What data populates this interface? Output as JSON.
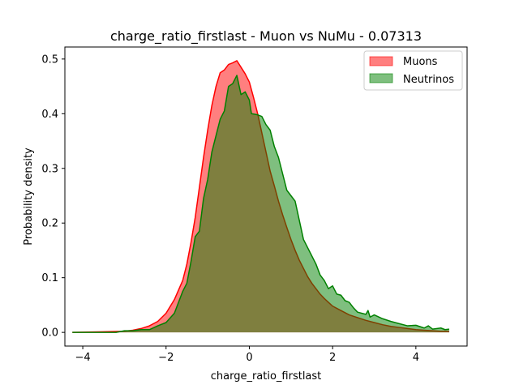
{
  "chart_data": {
    "type": "area",
    "title": "charge_ratio_firstlast - Muon vs NuMu - 0.07313",
    "xlabel": "charge_ratio_firstlast",
    "ylabel": "Probability density",
    "xlim": [
      -4.43,
      5.23
    ],
    "ylim": [
      -0.025,
      0.522
    ],
    "xticks": [
      -4,
      -2,
      0,
      2,
      4
    ],
    "xtick_labels": [
      "−4",
      "−2",
      "0",
      "2",
      "4"
    ],
    "yticks": [
      0.0,
      0.1,
      0.2,
      0.3,
      0.4,
      0.5
    ],
    "ytick_labels": [
      "0.0",
      "0.1",
      "0.2",
      "0.3",
      "0.4",
      "0.5"
    ],
    "legend_position": "top-right",
    "grid": false,
    "series": [
      {
        "name": "Muons",
        "line_color": "#ff0000",
        "fill_color": "#ff0000",
        "fill_alpha": 0.5,
        "points": [
          [
            -4.25,
            0.0
          ],
          [
            -3.0,
            0.002
          ],
          [
            -2.8,
            0.004
          ],
          [
            -2.6,
            0.007
          ],
          [
            -2.4,
            0.012
          ],
          [
            -2.2,
            0.02
          ],
          [
            -2.0,
            0.035
          ],
          [
            -1.8,
            0.06
          ],
          [
            -1.6,
            0.095
          ],
          [
            -1.5,
            0.125
          ],
          [
            -1.4,
            0.165
          ],
          [
            -1.3,
            0.21
          ],
          [
            -1.2,
            0.265
          ],
          [
            -1.1,
            0.32
          ],
          [
            -1.0,
            0.37
          ],
          [
            -0.9,
            0.415
          ],
          [
            -0.8,
            0.45
          ],
          [
            -0.7,
            0.475
          ],
          [
            -0.6,
            0.48
          ],
          [
            -0.5,
            0.49
          ],
          [
            -0.4,
            0.493
          ],
          [
            -0.3,
            0.497
          ],
          [
            -0.2,
            0.485
          ],
          [
            -0.1,
            0.473
          ],
          [
            0.0,
            0.458
          ],
          [
            0.1,
            0.43
          ],
          [
            0.2,
            0.4
          ],
          [
            0.3,
            0.365
          ],
          [
            0.4,
            0.33
          ],
          [
            0.5,
            0.295
          ],
          [
            0.6,
            0.268
          ],
          [
            0.7,
            0.24
          ],
          [
            0.8,
            0.215
          ],
          [
            0.9,
            0.192
          ],
          [
            1.0,
            0.17
          ],
          [
            1.1,
            0.15
          ],
          [
            1.2,
            0.132
          ],
          [
            1.3,
            0.117
          ],
          [
            1.4,
            0.102
          ],
          [
            1.5,
            0.09
          ],
          [
            1.6,
            0.08
          ],
          [
            1.7,
            0.07
          ],
          [
            1.8,
            0.062
          ],
          [
            1.9,
            0.055
          ],
          [
            2.0,
            0.048
          ],
          [
            2.2,
            0.04
          ],
          [
            2.4,
            0.032
          ],
          [
            2.6,
            0.027
          ],
          [
            2.8,
            0.022
          ],
          [
            3.0,
            0.018
          ],
          [
            3.2,
            0.014
          ],
          [
            3.4,
            0.011
          ],
          [
            3.6,
            0.009
          ],
          [
            3.8,
            0.007
          ],
          [
            4.0,
            0.005
          ],
          [
            4.2,
            0.004
          ],
          [
            4.4,
            0.003
          ],
          [
            4.6,
            0.002
          ],
          [
            4.8,
            0.002
          ]
        ]
      },
      {
        "name": "Neutrinos",
        "line_color": "#008000",
        "fill_color": "#008000",
        "fill_alpha": 0.5,
        "points": [
          [
            -4.25,
            0.0
          ],
          [
            -3.2,
            0.0
          ],
          [
            -3.0,
            0.003
          ],
          [
            -2.8,
            0.003
          ],
          [
            -2.6,
            0.005
          ],
          [
            -2.4,
            0.005
          ],
          [
            -2.2,
            0.012
          ],
          [
            -2.0,
            0.018
          ],
          [
            -1.8,
            0.035
          ],
          [
            -1.7,
            0.055
          ],
          [
            -1.6,
            0.075
          ],
          [
            -1.5,
            0.09
          ],
          [
            -1.4,
            0.13
          ],
          [
            -1.3,
            0.175
          ],
          [
            -1.2,
            0.185
          ],
          [
            -1.1,
            0.245
          ],
          [
            -1.0,
            0.28
          ],
          [
            -0.9,
            0.33
          ],
          [
            -0.8,
            0.36
          ],
          [
            -0.7,
            0.39
          ],
          [
            -0.6,
            0.405
          ],
          [
            -0.5,
            0.45
          ],
          [
            -0.4,
            0.455
          ],
          [
            -0.3,
            0.47
          ],
          [
            -0.2,
            0.435
          ],
          [
            -0.1,
            0.44
          ],
          [
            0.0,
            0.425
          ],
          [
            0.05,
            0.4
          ],
          [
            0.2,
            0.398
          ],
          [
            0.3,
            0.395
          ],
          [
            0.4,
            0.38
          ],
          [
            0.5,
            0.37
          ],
          [
            0.6,
            0.34
          ],
          [
            0.7,
            0.32
          ],
          [
            0.8,
            0.29
          ],
          [
            0.9,
            0.26
          ],
          [
            1.0,
            0.25
          ],
          [
            1.1,
            0.24
          ],
          [
            1.2,
            0.205
          ],
          [
            1.3,
            0.17
          ],
          [
            1.4,
            0.155
          ],
          [
            1.5,
            0.14
          ],
          [
            1.6,
            0.125
          ],
          [
            1.7,
            0.105
          ],
          [
            1.8,
            0.095
          ],
          [
            1.9,
            0.08
          ],
          [
            2.0,
            0.085
          ],
          [
            2.1,
            0.07
          ],
          [
            2.2,
            0.068
          ],
          [
            2.3,
            0.058
          ],
          [
            2.4,
            0.055
          ],
          [
            2.5,
            0.045
          ],
          [
            2.6,
            0.037
          ],
          [
            2.8,
            0.033
          ],
          [
            2.85,
            0.04
          ],
          [
            2.9,
            0.028
          ],
          [
            3.0,
            0.032
          ],
          [
            3.2,
            0.025
          ],
          [
            3.4,
            0.02
          ],
          [
            3.6,
            0.016
          ],
          [
            3.8,
            0.012
          ],
          [
            4.0,
            0.013
          ],
          [
            4.2,
            0.008
          ],
          [
            4.3,
            0.012
          ],
          [
            4.4,
            0.006
          ],
          [
            4.6,
            0.008
          ],
          [
            4.7,
            0.005
          ],
          [
            4.8,
            0.006
          ]
        ]
      }
    ]
  }
}
